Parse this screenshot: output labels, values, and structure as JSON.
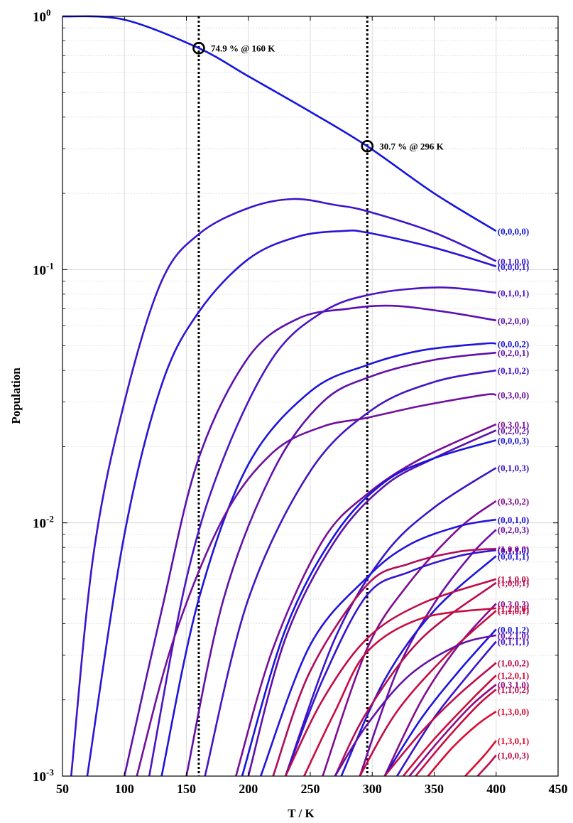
{
  "chart_data": {
    "type": "line",
    "xlabel": "T / K",
    "ylabel": "Population",
    "xlim": [
      50,
      450
    ],
    "ylim": [
      0.001,
      1
    ],
    "yscale": "log",
    "grid": true,
    "xticks": [
      "50",
      "100",
      "150",
      "200",
      "250",
      "300",
      "350",
      "400",
      "450"
    ],
    "yticks": [
      {
        "base": "10",
        "exp": "-3",
        "value": 0.001
      },
      {
        "base": "10",
        "exp": "-2",
        "value": 0.01
      },
      {
        "base": "10",
        "exp": "-1",
        "value": 0.1
      },
      {
        "base": "10",
        "exp": "0",
        "value": 1
      }
    ],
    "reference_lines": [
      {
        "x": 160,
        "style": "dotted",
        "color": "#000000"
      },
      {
        "x": 296,
        "style": "dotted",
        "color": "#000000"
      }
    ],
    "markers": [
      {
        "x": 160,
        "y": 0.749,
        "label": "74.9 % @ 160 K"
      },
      {
        "x": 296,
        "y": 0.307,
        "label": "30.7 % @ 296 K"
      }
    ],
    "series": [
      {
        "name": "(0,0,0,0)",
        "color": "#1414e0",
        "x": [
          50,
          100,
          160,
          200,
          250,
          296,
          350,
          400
        ],
        "y": [
          1.0,
          0.97,
          0.749,
          0.58,
          0.42,
          0.307,
          0.2,
          0.142
        ]
      },
      {
        "name": "(0,1,0,0)",
        "color": "#3c14cc",
        "x": [
          57,
          75,
          100,
          130,
          160,
          200,
          236,
          270,
          296,
          350,
          400
        ],
        "y": [
          0.001,
          0.0075,
          0.03,
          0.09,
          0.138,
          0.175,
          0.19,
          0.18,
          0.17,
          0.14,
          0.108
        ]
      },
      {
        "name": "(0,0,0,1)",
        "color": "#2814d8",
        "x": [
          70,
          100,
          130,
          160,
          200,
          240,
          276,
          296,
          350,
          400
        ],
        "y": [
          0.001,
          0.009,
          0.035,
          0.068,
          0.11,
          0.135,
          0.142,
          0.14,
          0.122,
          0.103
        ]
      },
      {
        "name": "(0,1,0,1)",
        "color": "#4a14c2",
        "x": [
          120,
          150,
          180,
          220,
          260,
          300,
          354,
          400
        ],
        "y": [
          0.001,
          0.006,
          0.018,
          0.045,
          0.068,
          0.08,
          0.085,
          0.081
        ]
      },
      {
        "name": "(0,2,0,0)",
        "color": "#5a10b0",
        "x": [
          100,
          130,
          160,
          200,
          240,
          280,
          316,
          360,
          400
        ],
        "y": [
          0.001,
          0.0045,
          0.018,
          0.045,
          0.064,
          0.07,
          0.072,
          0.068,
          0.063
        ]
      },
      {
        "name": "(0,0,0,2)",
        "color": "#1e14dc",
        "x": [
          130,
          160,
          200,
          250,
          296,
          340,
          390,
          400
        ],
        "y": [
          0.001,
          0.005,
          0.017,
          0.033,
          0.042,
          0.048,
          0.051,
          0.051
        ]
      },
      {
        "name": "(0,2,0,1)",
        "color": "#6010a8",
        "x": [
          150,
          180,
          220,
          260,
          300,
          350,
          400
        ],
        "y": [
          0.001,
          0.005,
          0.016,
          0.03,
          0.038,
          0.044,
          0.047
        ]
      },
      {
        "name": "(0,1,0,2)",
        "color": "#4214c4",
        "x": [
          165,
          200,
          250,
          300,
          350,
          400
        ],
        "y": [
          0.001,
          0.005,
          0.016,
          0.028,
          0.036,
          0.04
        ]
      },
      {
        "name": "(0,3,0,0)",
        "color": "#7010a0",
        "x": [
          110,
          140,
          180,
          220,
          260,
          296,
          340,
          390,
          400
        ],
        "y": [
          0.001,
          0.0035,
          0.0105,
          0.019,
          0.024,
          0.026,
          0.029,
          0.032,
          0.032
        ]
      },
      {
        "name": "(0,3,0,1)",
        "color": "#780e98",
        "x": [
          190,
          220,
          260,
          296,
          340,
          400
        ],
        "y": [
          0.001,
          0.0032,
          0.0085,
          0.013,
          0.018,
          0.0245
        ]
      },
      {
        "name": "(0,2,0,2)",
        "color": "#5c10ac",
        "x": [
          200,
          230,
          270,
          310,
          350,
          400
        ],
        "y": [
          0.001,
          0.0035,
          0.0085,
          0.014,
          0.018,
          0.0232
        ]
      },
      {
        "name": "(0,0,0,3)",
        "color": "#1814de",
        "x": [
          195,
          230,
          270,
          310,
          350,
          400
        ],
        "y": [
          0.001,
          0.0038,
          0.009,
          0.0145,
          0.018,
          0.0212
        ]
      },
      {
        "name": "(0,1,0,3)",
        "color": "#3a14c8",
        "x": [
          230,
          270,
          310,
          350,
          400
        ],
        "y": [
          0.001,
          0.0035,
          0.0075,
          0.0115,
          0.0165
        ]
      },
      {
        "name": "(0,3,0,2)",
        "color": "#800c90",
        "x": [
          260,
          296,
          330,
          370,
          400
        ],
        "y": [
          0.001,
          0.0032,
          0.0058,
          0.0095,
          0.0122
        ]
      },
      {
        "name": "(0,0,1,0)",
        "color": "#2414dc",
        "x": [
          210,
          250,
          296,
          330,
          370,
          400
        ],
        "y": [
          0.001,
          0.0033,
          0.0061,
          0.0082,
          0.0097,
          0.0103
        ]
      },
      {
        "name": "(0,2,0,3)",
        "color": "#6c0ea2",
        "x": [
          290,
          320,
          350,
          380,
          400
        ],
        "y": [
          0.001,
          0.0026,
          0.0048,
          0.0075,
          0.0094
        ]
      },
      {
        "name": "(1,0,0,0)",
        "color": "#b00c5c",
        "x": [
          220,
          250,
          296,
          330,
          370,
          400
        ],
        "y": [
          0.001,
          0.0026,
          0.0057,
          0.0069,
          0.0077,
          0.0079
        ]
      },
      {
        "name": "(0,1,1,0)",
        "color": "#3414d0",
        "x": [
          230,
          260,
          296,
          330,
          370,
          400
        ],
        "y": [
          0.001,
          0.0024,
          0.0052,
          0.0064,
          0.0074,
          0.0078
        ]
      },
      {
        "name": "(0,0,1,1)",
        "color": "#2014da",
        "x": [
          275,
          310,
          350,
          400
        ],
        "y": [
          0.001,
          0.0024,
          0.0045,
          0.0074
        ]
      },
      {
        "name": "(1,1,0,0)",
        "color": "#c00c48",
        "x": [
          230,
          260,
          296,
          340,
          400
        ],
        "y": [
          0.001,
          0.002,
          0.0035,
          0.0048,
          0.006
        ]
      },
      {
        "name": "(1,0,0,1)",
        "color": "#b80c50",
        "x": [
          270,
          296,
          340,
          400
        ],
        "y": [
          0.001,
          0.0018,
          0.0035,
          0.0058
        ]
      },
      {
        "name": "(0,3,0,3)",
        "color": "#840c8c",
        "x": [
          310,
          340,
          370,
          400
        ],
        "y": [
          0.001,
          0.002,
          0.0033,
          0.0048
        ]
      },
      {
        "name": "(1,2,0,0)",
        "color": "#c80c40",
        "x": [
          245,
          270,
          296,
          340,
          400
        ],
        "y": [
          0.001,
          0.0018,
          0.0031,
          0.0042,
          0.0046
        ]
      },
      {
        "name": "(1,1,0,1)",
        "color": "#c40c44",
        "x": [
          290,
          320,
          360,
          400
        ],
        "y": [
          0.001,
          0.0018,
          0.003,
          0.0045
        ]
      },
      {
        "name": "(0,0,1,2)",
        "color": "#1c14de",
        "x": [
          310,
          340,
          370,
          400
        ],
        "y": [
          0.001,
          0.0017,
          0.0026,
          0.0038
        ]
      },
      {
        "name": "(0,2,1,0)",
        "color": "#6410a8",
        "x": [
          270,
          296,
          330,
          370,
          400
        ],
        "y": [
          0.001,
          0.0016,
          0.0025,
          0.0033,
          0.0036
        ]
      },
      {
        "name": "(0,1,1,1)",
        "color": "#3814cc",
        "x": [
          320,
          350,
          380,
          400
        ],
        "y": [
          0.001,
          0.0017,
          0.0026,
          0.0034
        ]
      },
      {
        "name": "(1,0,0,2)",
        "color": "#bc0c4c",
        "x": [
          310,
          340,
          370,
          400
        ],
        "y": [
          0.001,
          0.0015,
          0.0021,
          0.0028
        ]
      },
      {
        "name": "(1,2,0,1)",
        "color": "#cc0c3c",
        "x": [
          325,
          350,
          380,
          400
        ],
        "y": [
          0.001,
          0.0014,
          0.002,
          0.0025
        ]
      },
      {
        "name": "(0,3,1,0)",
        "color": "#8c0c88",
        "x": [
          330,
          355,
          380,
          400
        ],
        "y": [
          0.001,
          0.0014,
          0.0019,
          0.0023
        ]
      },
      {
        "name": "(1,1,0,2)",
        "color": "#c60c42",
        "x": [
          335,
          360,
          385,
          400
        ],
        "y": [
          0.001,
          0.0014,
          0.0019,
          0.0022
        ]
      },
      {
        "name": "(1,3,0,0)",
        "color": "#d80c30",
        "x": [
          345,
          365,
          385,
          400
        ],
        "y": [
          0.001,
          0.0013,
          0.0016,
          0.0018
        ]
      },
      {
        "name": "(1,3,0,1)",
        "color": "#dc0c2c",
        "x": [
          375,
          390,
          400
        ],
        "y": [
          0.001,
          0.0012,
          0.00138
        ]
      },
      {
        "name": "(1,0,0,3)",
        "color": "#c00c4a",
        "x": [
          385,
          395,
          400
        ],
        "y": [
          0.001,
          0.00113,
          0.00121
        ]
      }
    ]
  }
}
